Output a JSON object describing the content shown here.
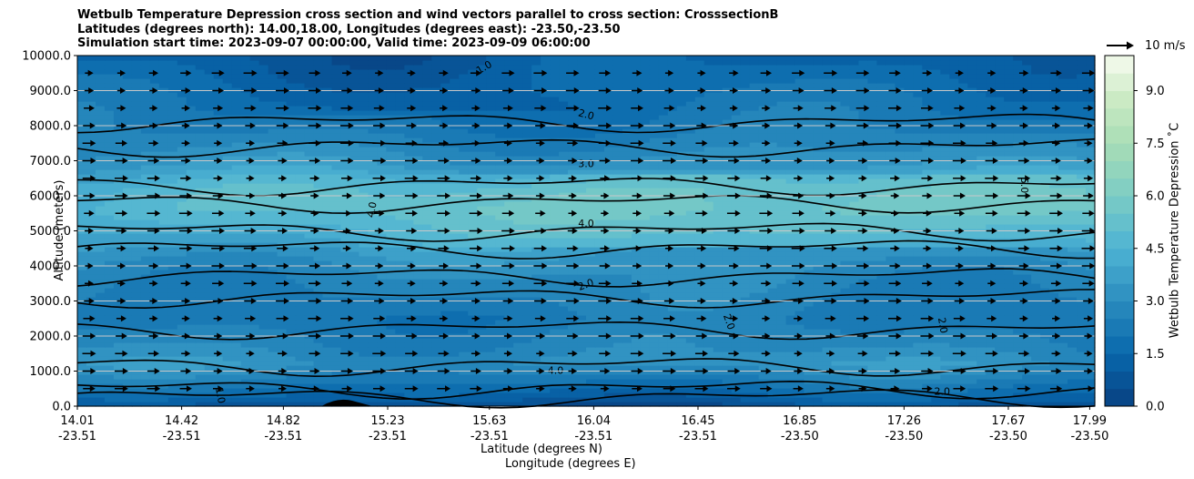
{
  "title_lines": [
    "Wetbulb Temperature Depression cross section and wind vectors parallel to cross section: CrosssectionB",
    "Latitudes (degrees north): 14.00,18.00, Longitudes (degrees east): -23.50,-23.50",
    "Simulation start time: 2023-09-07 00:00:00, Valid time: 2023-09-09 06:00:00"
  ],
  "chart_data": {
    "type": "contourf",
    "title": "Wetbulb Temperature Depression cross section and wind vectors parallel to cross section: CrosssectionB",
    "ylabel": "Altitude (meters)",
    "xlabel_lat": "Latitude (degrees N)",
    "xlabel_lon": "Longitude (degrees E)",
    "ylim": [
      0,
      10000
    ],
    "yticks": [
      "0.0",
      "1000.0",
      "2000.0",
      "3000.0",
      "4000.0",
      "5000.0",
      "6000.0",
      "7000.0",
      "8000.0",
      "9000.0",
      "10000.0"
    ],
    "ytick_values": [
      0,
      1000,
      2000,
      3000,
      4000,
      5000,
      6000,
      7000,
      8000,
      9000,
      10000
    ],
    "xticks": [
      {
        "lat": "14.01",
        "lon": "-23.51",
        "frac": 0.0
      },
      {
        "lat": "14.42",
        "lon": "-23.51",
        "frac": 0.1025
      },
      {
        "lat": "14.82",
        "lon": "-23.51",
        "frac": 0.2025
      },
      {
        "lat": "15.23",
        "lon": "-23.51",
        "frac": 0.305
      },
      {
        "lat": "15.63",
        "lon": "-23.51",
        "frac": 0.405
      },
      {
        "lat": "16.04",
        "lon": "-23.51",
        "frac": 0.5075
      },
      {
        "lat": "16.45",
        "lon": "-23.51",
        "frac": 0.61
      },
      {
        "lat": "16.85",
        "lon": "-23.50",
        "frac": 0.71
      },
      {
        "lat": "17.26",
        "lon": "-23.50",
        "frac": 0.8125
      },
      {
        "lat": "17.67",
        "lon": "-23.50",
        "frac": 0.915
      },
      {
        "lat": "17.99",
        "lon": "-23.50",
        "frac": 0.995
      }
    ],
    "colorbar": {
      "label": "Wetbulb Temperature Depression $^\\circ$C",
      "label_text": "Wetbulb Temperature Depression ˚C",
      "range": [
        0,
        10
      ],
      "ticks": [
        "0.0",
        "1.5",
        "3.0",
        "4.5",
        "6.0",
        "7.5",
        "9.0"
      ],
      "tick_values": [
        0,
        1.5,
        3.0,
        4.5,
        6.0,
        7.5,
        9.0
      ],
      "levels": 20
    },
    "contour_labels": [
      "1.0",
      "2.0",
      "3.0",
      "4.0",
      "5.0"
    ],
    "wind_reference": "10 m/s",
    "wind_direction": "east",
    "profile": [
      {
        "alt": 0,
        "wbd": 0.6
      },
      {
        "alt": 300,
        "wbd": 1.4
      },
      {
        "alt": 800,
        "wbd": 2.4
      },
      {
        "alt": 1200,
        "wbd": 3.2
      },
      {
        "alt": 1800,
        "wbd": 2.7
      },
      {
        "alt": 2500,
        "wbd": 2.3
      },
      {
        "alt": 3200,
        "wbd": 2.6
      },
      {
        "alt": 4000,
        "wbd": 3.0
      },
      {
        "alt": 5000,
        "wbd": 4.2
      },
      {
        "alt": 5600,
        "wbd": 4.8
      },
      {
        "alt": 6200,
        "wbd": 4.6
      },
      {
        "alt": 7000,
        "wbd": 3.2
      },
      {
        "alt": 8000,
        "wbd": 2.2
      },
      {
        "alt": 9000,
        "wbd": 1.8
      },
      {
        "alt": 10000,
        "wbd": 1.3
      }
    ]
  }
}
